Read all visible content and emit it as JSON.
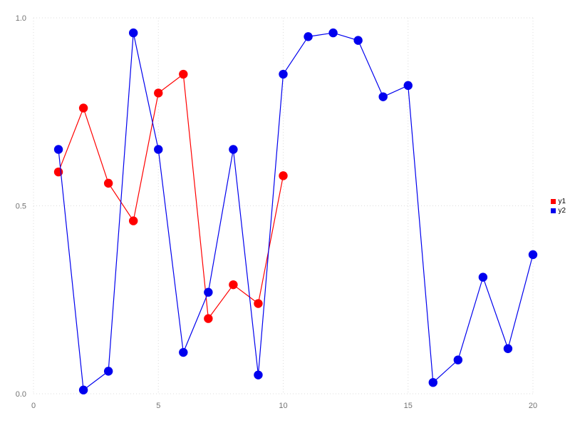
{
  "chart_data": {
    "type": "line",
    "title": "",
    "xlabel": "",
    "ylabel": "",
    "xlim": [
      0,
      20
    ],
    "ylim": [
      0.0,
      1.0
    ],
    "x_ticks": [
      0,
      5,
      10,
      15,
      20
    ],
    "y_ticks": [
      0.0,
      0.5,
      1.0
    ],
    "grid": "dotted",
    "grid_color": "#dcdcdc",
    "axis_text_color": "#737373",
    "legend_position": "right-middle",
    "legend_entries": [
      "y1",
      "y2"
    ],
    "series": [
      {
        "name": "y1",
        "color": "#ff0000",
        "x": [
          1,
          2,
          3,
          4,
          5,
          6,
          7,
          8,
          9,
          10
        ],
        "values": [
          0.59,
          0.76,
          0.56,
          0.46,
          0.8,
          0.85,
          0.2,
          0.29,
          0.24,
          0.58
        ]
      },
      {
        "name": "y2",
        "color": "#0000ee",
        "x": [
          1,
          2,
          3,
          4,
          5,
          6,
          7,
          8,
          9,
          10,
          11,
          12,
          13,
          14,
          15,
          16,
          17,
          18,
          19,
          20
        ],
        "values": [
          0.65,
          0.01,
          0.06,
          0.96,
          0.65,
          0.11,
          0.27,
          0.65,
          0.05,
          0.85,
          0.95,
          0.96,
          0.94,
          0.79,
          0.82,
          0.03,
          0.09,
          0.31,
          0.12,
          0.37
        ]
      }
    ]
  }
}
